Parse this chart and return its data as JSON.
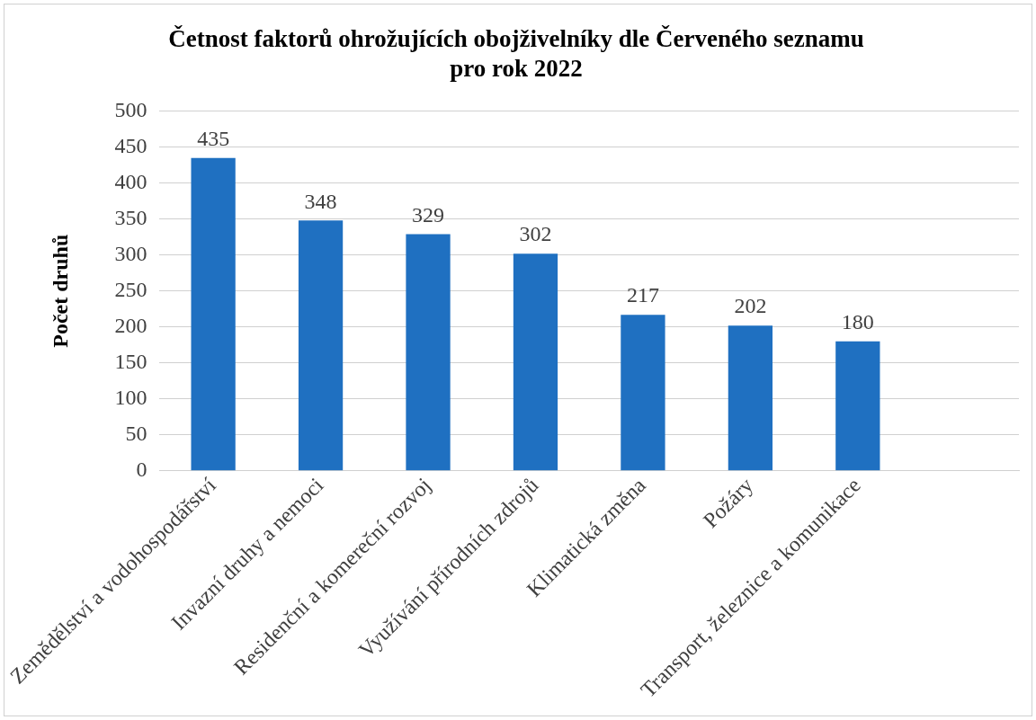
{
  "chart_data": {
    "type": "bar",
    "title": "Četnost faktorů ohrožujících obojživelníky dle Červeného seznamu pro rok 2022",
    "ylabel": "Počet druhů",
    "categories": [
      "Zemědělství a vodohospodářství",
      "Invazní druhy a nemoci",
      "Residenční a komereční rozvoj",
      "Využívání přírodních zdrojů",
      "Klimatická změna",
      "Požáry",
      "Transport, železnice a komunikace",
      null
    ],
    "values": [
      435,
      348,
      329,
      302,
      217,
      202,
      180,
      null
    ],
    "color": "#1f70c1",
    "ylim": [
      0,
      500
    ],
    "yticks": [
      0,
      50,
      100,
      150,
      200,
      250,
      300,
      350,
      400,
      450,
      500
    ],
    "grid": "y",
    "data_labels": true,
    "legend": false
  }
}
